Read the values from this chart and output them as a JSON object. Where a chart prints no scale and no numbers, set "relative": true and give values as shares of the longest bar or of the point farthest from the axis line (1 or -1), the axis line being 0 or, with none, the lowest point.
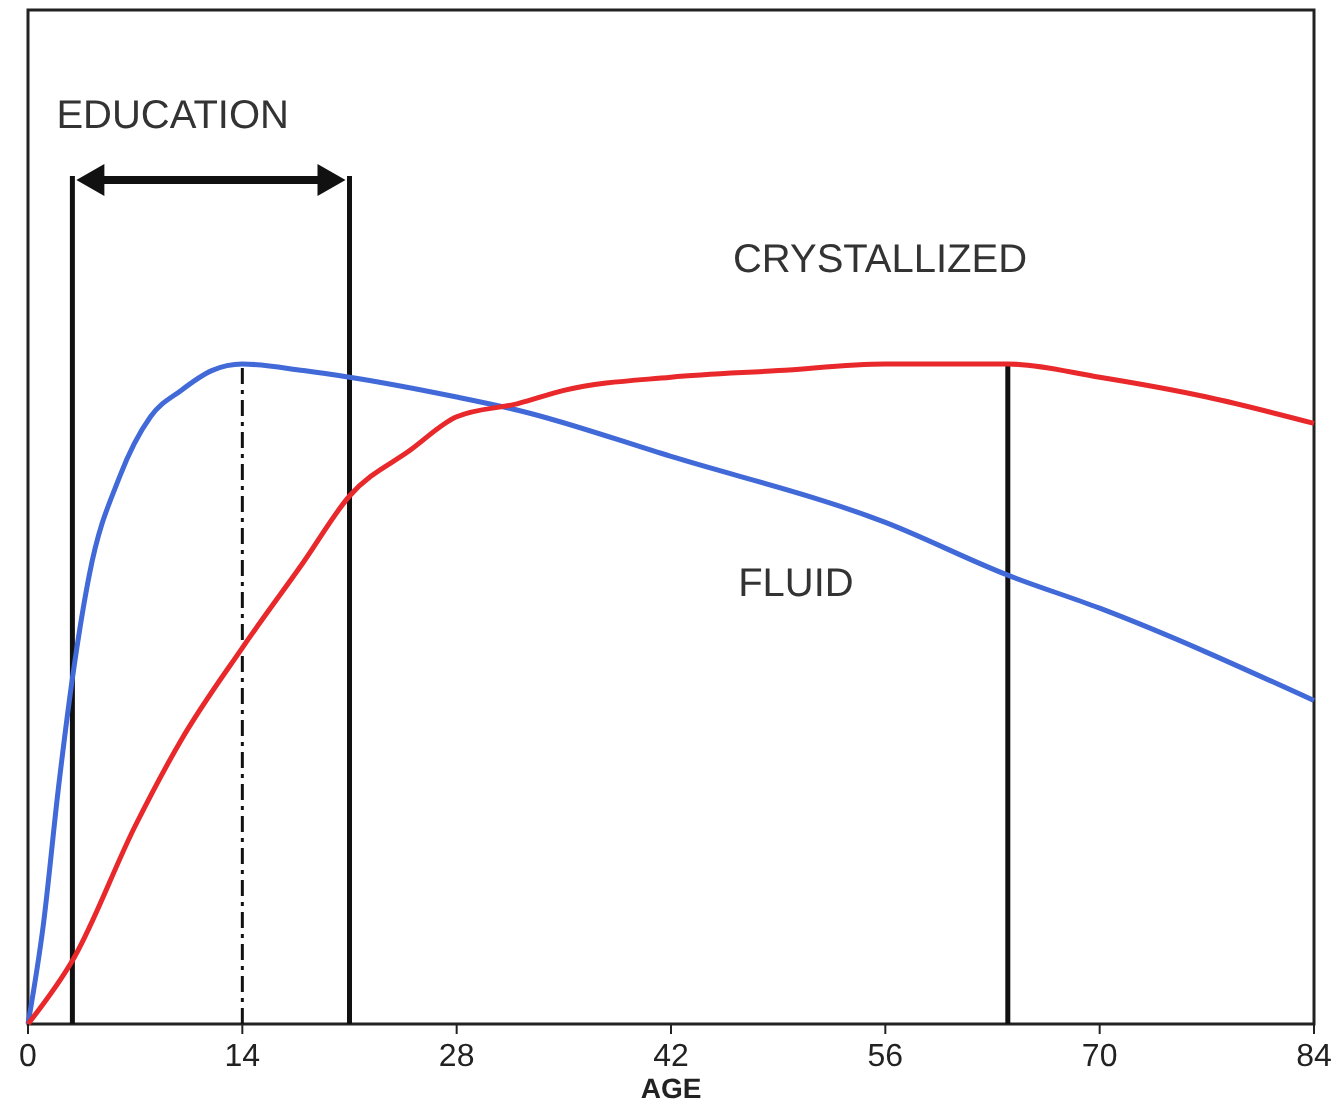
{
  "chart_data": {
    "type": "line",
    "relative": true,
    "xlabel": "AGE",
    "xlim": [
      0,
      84
    ],
    "xticks": [
      0,
      14,
      28,
      42,
      56,
      70,
      84
    ],
    "line_style": "solid",
    "annotations": [
      "EDUCATION"
    ],
    "series": [
      {
        "name": "FLUID",
        "color": "#4169d8",
        "x": [
          0,
          1,
          2,
          3,
          4,
          6,
          8,
          10,
          12,
          14,
          18,
          21,
          28,
          32,
          42,
          56,
          64,
          70,
          84
        ],
        "values": [
          0,
          0.15,
          0.36,
          0.54,
          0.68,
          0.83,
          0.92,
          0.96,
          0.99,
          1,
          0.99,
          0.98,
          0.95,
          0.93,
          0.86,
          0.76,
          0.68,
          0.63,
          0.49
        ]
      },
      {
        "name": "CRYSTALLIZED",
        "color": "#e8282a",
        "x": [
          0,
          3,
          7,
          10,
          14,
          18,
          21,
          25,
          28,
          32,
          35,
          42,
          49,
          56,
          64,
          70,
          77,
          84
        ],
        "values": [
          0,
          0.1,
          0.3,
          0.43,
          0.57,
          0.7,
          0.8,
          0.87,
          0.92,
          0.94,
          0.96,
          0.98,
          0.99,
          1,
          1,
          0.98,
          0.95,
          0.91
        ]
      }
    ],
    "ref_lines": [
      {
        "axis": "x",
        "value": 2.9,
        "line_style": "solid"
      },
      {
        "axis": "x",
        "value": 21,
        "line_style": "solid"
      },
      {
        "axis": "x",
        "value": 14,
        "line_style": "dashed"
      },
      {
        "axis": "x",
        "value": 64,
        "line_style": "solid"
      }
    ]
  }
}
